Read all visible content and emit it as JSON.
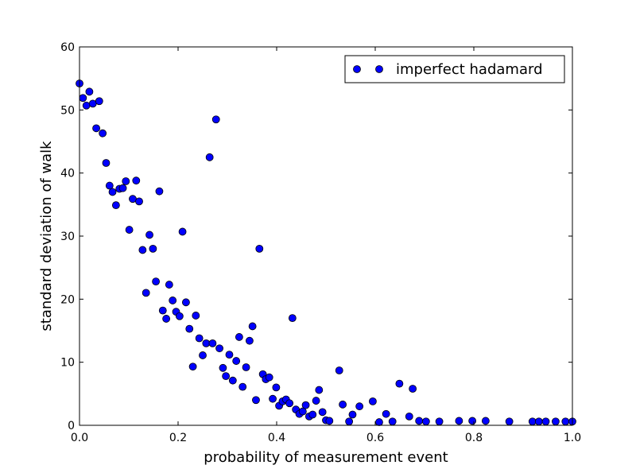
{
  "chart_data": {
    "type": "scatter",
    "xlabel": "probability of measurement event",
    "ylabel": "standard deviation of walk",
    "xlim": [
      0,
      1
    ],
    "ylim": [
      0,
      60
    ],
    "xticks": [
      0,
      0.2,
      0.4,
      0.6,
      0.8,
      1
    ],
    "xtick_labels": [
      "0.0",
      "0.2",
      "0.4",
      "0.6",
      "0.8",
      "1.0"
    ],
    "yticks": [
      0,
      10,
      20,
      30,
      40,
      50,
      60
    ],
    "ytick_labels": [
      "0",
      "10",
      "20",
      "30",
      "40",
      "50",
      "60"
    ],
    "grid": false,
    "legend_position": "top-right",
    "series": [
      {
        "name": "imperfect hadamard",
        "color": "#0000ff",
        "marker": "circle",
        "x": [
          0.0,
          0.007,
          0.014,
          0.02,
          0.027,
          0.034,
          0.04,
          0.047,
          0.054,
          0.061,
          0.067,
          0.074,
          0.081,
          0.088,
          0.094,
          0.101,
          0.108,
          0.115,
          0.121,
          0.128,
          0.135,
          0.142,
          0.149,
          0.155,
          0.162,
          0.169,
          0.176,
          0.182,
          0.189,
          0.196,
          0.203,
          0.209,
          0.216,
          0.223,
          0.23,
          0.236,
          0.243,
          0.25,
          0.257,
          0.264,
          0.27,
          0.277,
          0.284,
          0.291,
          0.297,
          0.304,
          0.311,
          0.318,
          0.324,
          0.331,
          0.338,
          0.345,
          0.351,
          0.358,
          0.365,
          0.372,
          0.378,
          0.385,
          0.392,
          0.399,
          0.405,
          0.412,
          0.419,
          0.426,
          0.432,
          0.439,
          0.446,
          0.453,
          0.459,
          0.466,
          0.473,
          0.48,
          0.486,
          0.493,
          0.5,
          0.507,
          0.527,
          0.534,
          0.547,
          0.554,
          0.568,
          0.595,
          0.608,
          0.622,
          0.635,
          0.649,
          0.669,
          0.676,
          0.689,
          0.703,
          0.73,
          0.77,
          0.797,
          0.824,
          0.872,
          0.919,
          0.932,
          0.946,
          0.966,
          0.986,
          1.0
        ],
        "y": [
          54.2,
          51.9,
          50.7,
          52.9,
          51.0,
          47.1,
          51.4,
          46.3,
          41.6,
          38.0,
          37.0,
          34.9,
          37.5,
          37.6,
          38.7,
          31.0,
          35.9,
          38.8,
          35.5,
          27.8,
          21.0,
          30.2,
          28.0,
          22.8,
          37.1,
          18.2,
          16.9,
          22.3,
          19.8,
          18.0,
          17.3,
          30.7,
          19.5,
          15.3,
          9.3,
          17.4,
          13.8,
          11.1,
          13.0,
          42.5,
          13.0,
          48.5,
          12.2,
          9.1,
          7.8,
          11.2,
          7.1,
          10.2,
          14.0,
          6.1,
          9.2,
          13.4,
          15.7,
          4.0,
          28.0,
          8.1,
          7.3,
          7.6,
          4.2,
          6.0,
          3.1,
          3.8,
          4.1,
          3.5,
          17.0,
          2.5,
          1.8,
          2.2,
          3.2,
          1.4,
          1.7,
          3.9,
          5.6,
          2.1,
          0.8,
          0.7,
          8.7,
          3.3,
          0.6,
          1.7,
          3.0,
          3.8,
          0.5,
          1.8,
          0.6,
          6.6,
          1.4,
          5.8,
          0.7,
          0.6,
          0.6,
          0.7,
          0.7,
          0.7,
          0.6,
          0.6,
          0.6,
          0.6,
          0.6,
          0.6,
          0.6
        ]
      }
    ]
  }
}
